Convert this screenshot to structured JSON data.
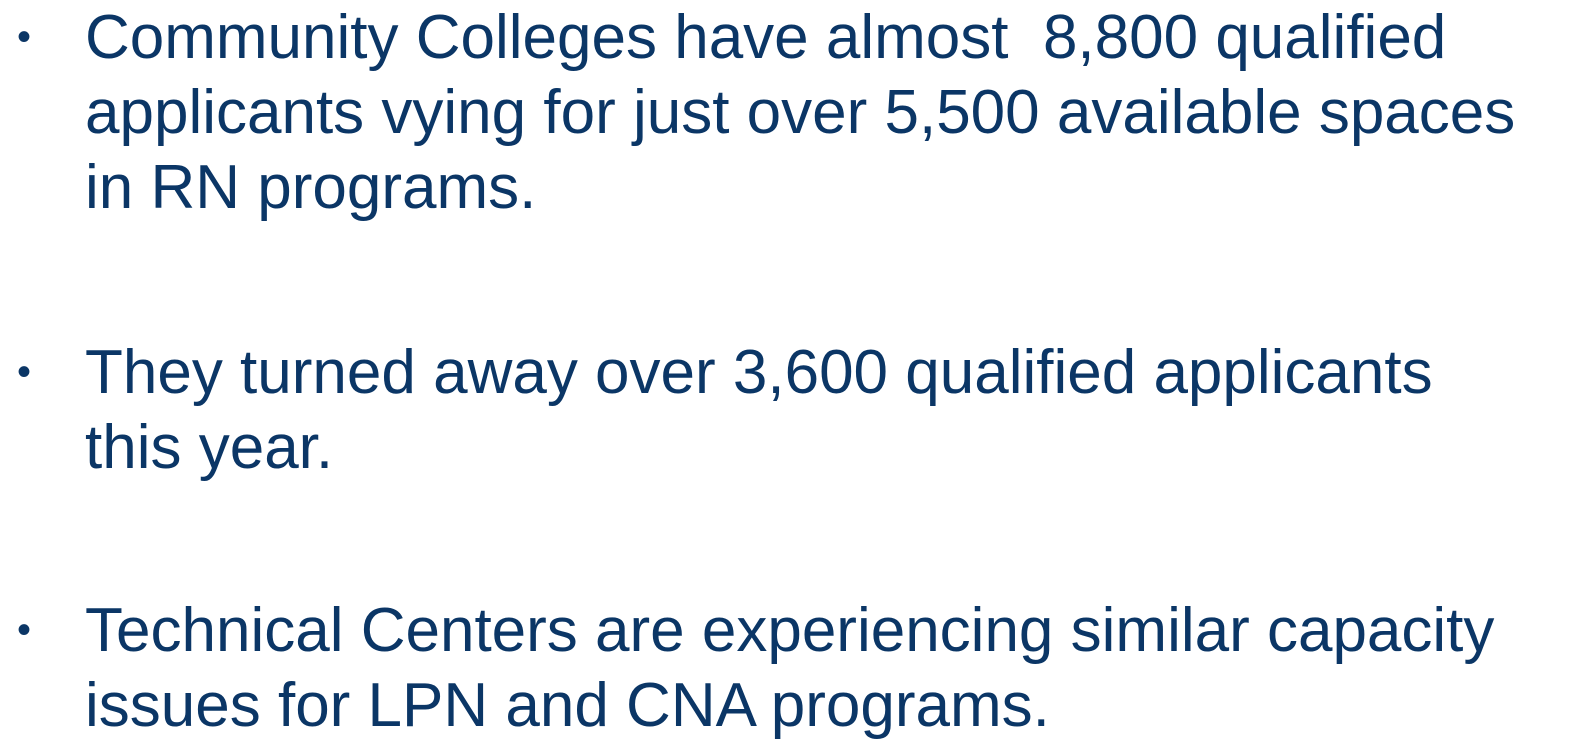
{
  "bullets": [
    {
      "lines": [
        "Community Colleges have almost  8,800 qualified",
        "applicants vying for just over 5,500 available spaces",
        "in RN programs."
      ]
    },
    {
      "lines": [
        "They turned away over 3,600 qualified applicants",
        "this year."
      ]
    },
    {
      "lines": [
        "Technical Centers are experiencing similar capacity",
        "issues for LPN and CNA programs."
      ]
    }
  ]
}
